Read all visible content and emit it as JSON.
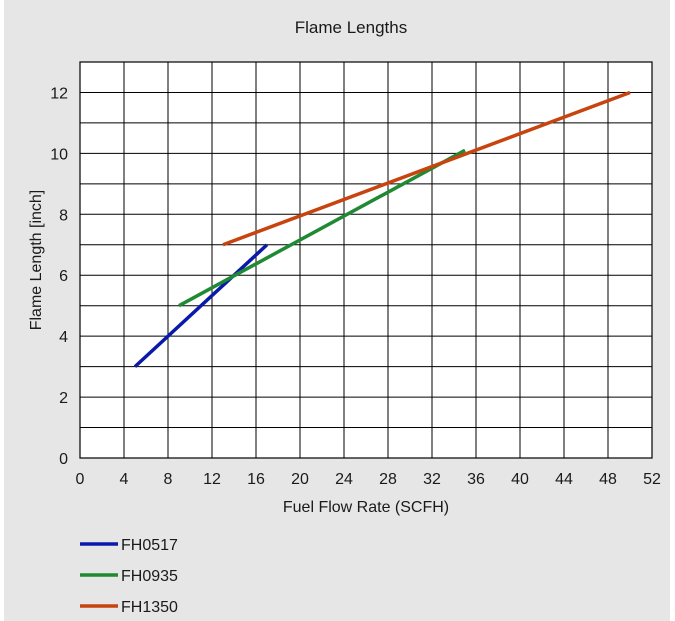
{
  "chart_data": {
    "type": "line",
    "title": "Flame Lengths",
    "xlabel": "Fuel Flow Rate (SCFH)",
    "ylabel": "Flame Length [inch]",
    "xlim": [
      0,
      52
    ],
    "ylim": [
      0,
      13
    ],
    "xticks": [
      0,
      4,
      8,
      12,
      16,
      20,
      24,
      28,
      32,
      36,
      40,
      44,
      48,
      52
    ],
    "yticks": [
      0,
      2,
      4,
      6,
      8,
      10,
      12
    ],
    "grid_x_step": 4,
    "grid_y_step": 1,
    "grid": true,
    "legend_position": "bottom-left",
    "series": [
      {
        "name": "FH0517",
        "color": "#0a1aa8",
        "x": [
          5,
          17
        ],
        "y": [
          3,
          7
        ]
      },
      {
        "name": "FH0935",
        "color": "#1f8a33",
        "x": [
          9,
          35
        ],
        "y": [
          5,
          10.1
        ]
      },
      {
        "name": "FH1350",
        "color": "#c8440e",
        "x": [
          13,
          50
        ],
        "y": [
          7,
          12
        ]
      }
    ]
  }
}
